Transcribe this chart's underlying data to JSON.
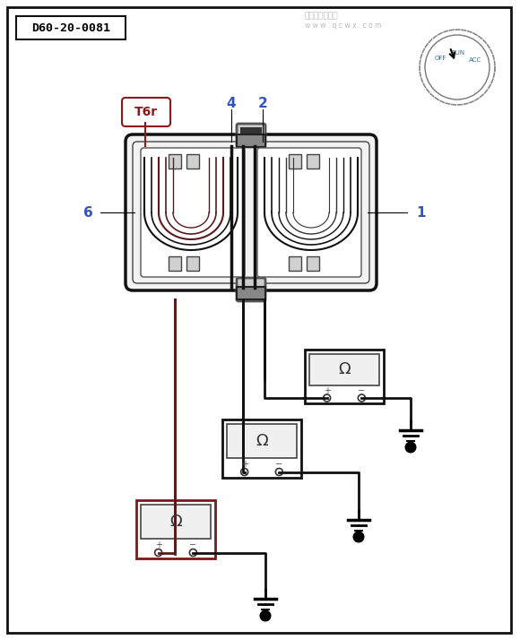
{
  "bg_color": "#ffffff",
  "border_color": "#000000",
  "title_label": "D60-20-0081",
  "connector_label": "T6r",
  "pin_label_color": "#3355bb",
  "connector_label_color": "#8B1A1A",
  "meter1_border": "#111111",
  "meter2_border": "#111111",
  "meter3_border": "#7a1a1a",
  "wire_brown": "#5a1a1a",
  "wire_black": "#111111",
  "conn_outer_color": "#111111",
  "conn_fill": "#e0e0e0",
  "conn_inner_line": "#333333",
  "dial_color": "#555555",
  "dial_label_color": "#336699",
  "watermark1": "汽车维修技术网",
  "watermark2": "w w w . q c w x . c o m"
}
